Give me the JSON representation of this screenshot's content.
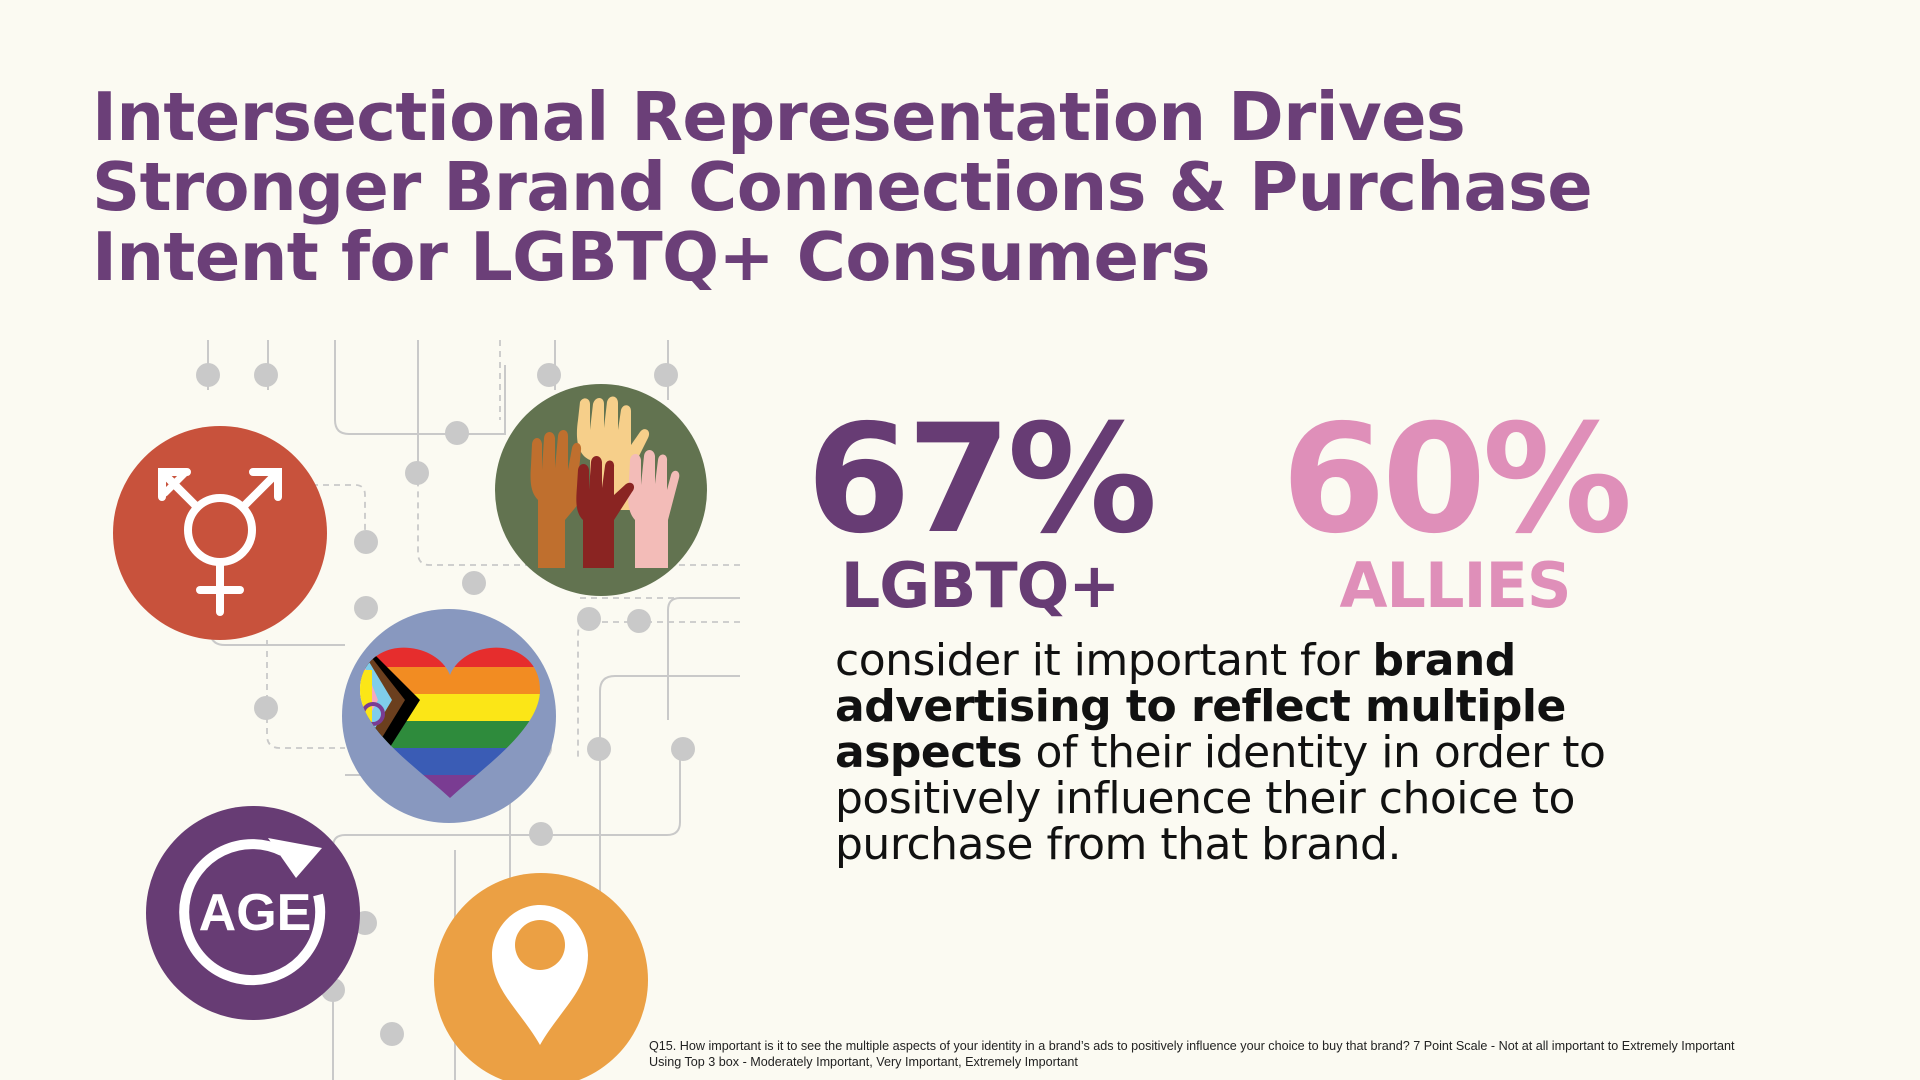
{
  "title": {
    "line1": "Intersectional Representation Drives",
    "line2": "Stronger Brand Connections & Purchase",
    "line3": "Intent for LGBTQ+ Consumers"
  },
  "colors": {
    "title": "#6b3f78",
    "lgbtq": "#673c74",
    "allies": "#df8fb9",
    "background": "#fbfaf2",
    "transgender_circle": "#c8523c",
    "hands_circle": "#627350",
    "heart_circle": "#8898bf",
    "age_circle": "#673c74",
    "location_circle": "#eba044"
  },
  "icons": {
    "transgender": "transgender-symbol-icon",
    "hands": "raised-hands-icon",
    "heart": "progress-pride-heart-icon",
    "age": "age-icon",
    "location": "location-pin-icon"
  },
  "age_icon_text": "AGE",
  "stats": {
    "lgbtq": {
      "value": "67%",
      "label": "LGBTQ+"
    },
    "allies": {
      "value": "60%",
      "label": "ALLIES"
    }
  },
  "body": {
    "part1": "consider it important for ",
    "bold": "brand advertising to reflect multiple aspects",
    "part2": " of their identity in order to positively influence their choice to purchase from that brand."
  },
  "footnote": {
    "line1": "Q15. How important is it to see the multiple aspects of your identity in a brand’s ads to positively influence your choice to buy that brand? 7 Point Scale - Not at all important to Extremely Important",
    "line2": "Using Top 3 box - Moderately Important, Very Important, Extremely Important"
  }
}
